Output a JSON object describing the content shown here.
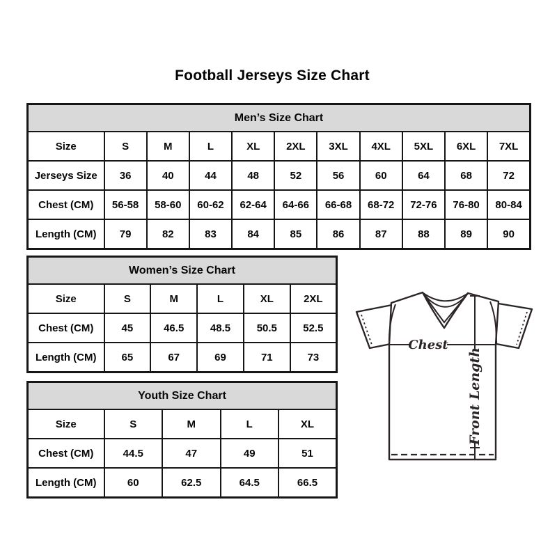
{
  "page_title": "Football Jerseys Size Chart",
  "colors": {
    "background": "#ffffff",
    "table_header_bg": "#d9d9d9",
    "table_border": "#161616",
    "text": "#070707",
    "diagram_line": "#2b2527"
  },
  "tables": [
    {
      "name": "mens-size-chart",
      "title": "Men’s Size Chart",
      "rows": [
        [
          "Size",
          "S",
          "M",
          "L",
          "XL",
          "2XL",
          "3XL",
          "4XL",
          "5XL",
          "6XL",
          "7XL"
        ],
        [
          "Jerseys Size",
          "36",
          "40",
          "44",
          "48",
          "52",
          "56",
          "60",
          "64",
          "68",
          "72"
        ],
        [
          "Chest (CM)",
          "56-58",
          "58-60",
          "60-62",
          "62-64",
          "64-66",
          "66-68",
          "68-72",
          "72-76",
          "76-80",
          "80-84"
        ],
        [
          "Length (CM)",
          "79",
          "82",
          "83",
          "84",
          "85",
          "86",
          "87",
          "88",
          "89",
          "90"
        ]
      ]
    },
    {
      "name": "womens-size-chart",
      "title": "Women’s Size Chart",
      "rows": [
        [
          "Size",
          "S",
          "M",
          "L",
          "XL",
          "2XL"
        ],
        [
          "Chest (CM)",
          "45",
          "46.5",
          "48.5",
          "50.5",
          "52.5"
        ],
        [
          "Length (CM)",
          "65",
          "67",
          "69",
          "71",
          "73"
        ]
      ]
    },
    {
      "name": "youth-size-chart",
      "title": "Youth Size Chart",
      "rows": [
        [
          "Size",
          "S",
          "M",
          "L",
          "XL"
        ],
        [
          "Chest (CM)",
          "44.5",
          "47",
          "49",
          "51"
        ],
        [
          "Length (CM)",
          "60",
          "62.5",
          "64.5",
          "66.5"
        ]
      ]
    }
  ],
  "diagram": {
    "chest_label": "Chest",
    "front_length_label": "Front Length"
  }
}
